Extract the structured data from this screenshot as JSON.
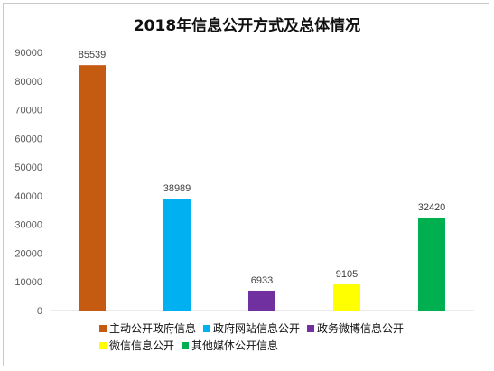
{
  "chart_data": {
    "type": "bar",
    "title": "2018年信息公开方式及总体情况",
    "categories": [
      "主动公开政府信息",
      "政府网站信息公开",
      "政务微博信息公开",
      "微信信息公开",
      "其他媒体公开信息"
    ],
    "values": [
      85539,
      38989,
      6933,
      9105,
      32420
    ],
    "colors": [
      "#c55a11",
      "#00b0f0",
      "#7030a0",
      "#ffff00",
      "#00b050"
    ],
    "ylim": [
      0,
      90000
    ],
    "yticks": [
      0,
      10000,
      20000,
      30000,
      40000,
      50000,
      60000,
      70000,
      80000,
      90000
    ],
    "grid": false,
    "legend": "bottom",
    "xlabel": "",
    "ylabel": ""
  }
}
